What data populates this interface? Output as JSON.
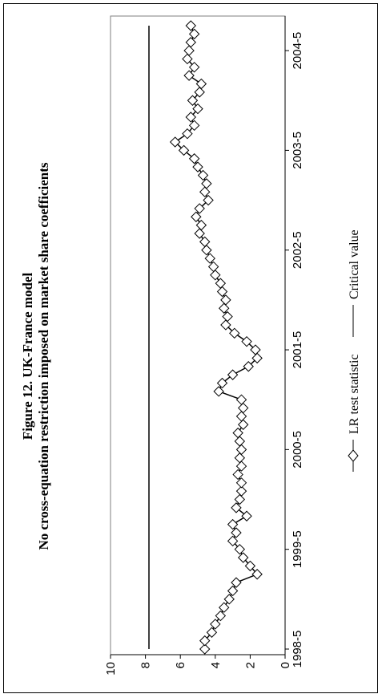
{
  "chart_data": {
    "type": "line",
    "orientation": "rotated-90-ccw",
    "title": "Figure 12. UK-France model",
    "subtitle": "No cross-equation restriction imposed on market share coefficients",
    "xlabel": "",
    "ylabel": "",
    "ylim": [
      0,
      10
    ],
    "yticks": [
      0,
      2,
      4,
      6,
      8,
      10
    ],
    "xtick_labels": [
      "1998-5",
      "1999-5",
      "2000-5",
      "2001-5",
      "2002-5",
      "2003-5",
      "2004-5"
    ],
    "xtick_index": [
      0,
      12,
      24,
      36,
      48,
      60,
      72
    ],
    "grid": false,
    "legend": "bottom",
    "series": [
      {
        "name": "LR test statistic",
        "marker": "diamond",
        "color": "#000000",
        "values": [
          4.6,
          4.6,
          4.2,
          4.0,
          3.7,
          3.5,
          3.2,
          3.0,
          2.8,
          1.6,
          2.0,
          2.4,
          2.6,
          3.0,
          2.8,
          3.0,
          2.2,
          2.8,
          2.6,
          2.5,
          2.5,
          2.7,
          2.5,
          2.6,
          2.5,
          2.6,
          2.7,
          2.4,
          2.5,
          2.4,
          2.5,
          3.8,
          3.6,
          3.0,
          2.1,
          1.6,
          1.7,
          2.2,
          2.9,
          3.4,
          3.3,
          3.5,
          3.4,
          3.6,
          3.7,
          4.0,
          4.1,
          4.3,
          4.5,
          4.6,
          4.9,
          4.8,
          5.1,
          4.9,
          4.4,
          4.6,
          4.5,
          4.7,
          5.0,
          5.2,
          5.8,
          6.3,
          5.6,
          5.2,
          5.4,
          5.0,
          5.3,
          4.9,
          4.8,
          5.5,
          5.2,
          5.6,
          5.5,
          5.4,
          5.2,
          5.4
        ]
      },
      {
        "name": "Critical value",
        "marker": "none",
        "color": "#000000",
        "values": [
          7.8,
          7.8,
          7.8,
          7.8,
          7.8,
          7.8,
          7.8,
          7.8,
          7.8,
          7.8,
          7.8,
          7.8,
          7.8,
          7.8,
          7.8,
          7.8,
          7.8,
          7.8,
          7.8,
          7.8,
          7.8,
          7.8,
          7.8,
          7.8,
          7.8,
          7.8,
          7.8,
          7.8,
          7.8,
          7.8,
          7.8,
          7.8,
          7.8,
          7.8,
          7.8,
          7.8,
          7.8,
          7.8,
          7.8,
          7.8,
          7.8,
          7.8,
          7.8,
          7.8,
          7.8,
          7.8,
          7.8,
          7.8,
          7.8,
          7.8,
          7.8,
          7.8,
          7.8,
          7.8,
          7.8,
          7.8,
          7.8,
          7.8,
          7.8,
          7.8,
          7.8,
          7.8,
          7.8,
          7.8,
          7.8,
          7.8,
          7.8,
          7.8,
          7.8,
          7.8,
          7.8,
          7.8,
          7.8,
          7.8,
          7.8,
          7.8
        ]
      }
    ]
  }
}
